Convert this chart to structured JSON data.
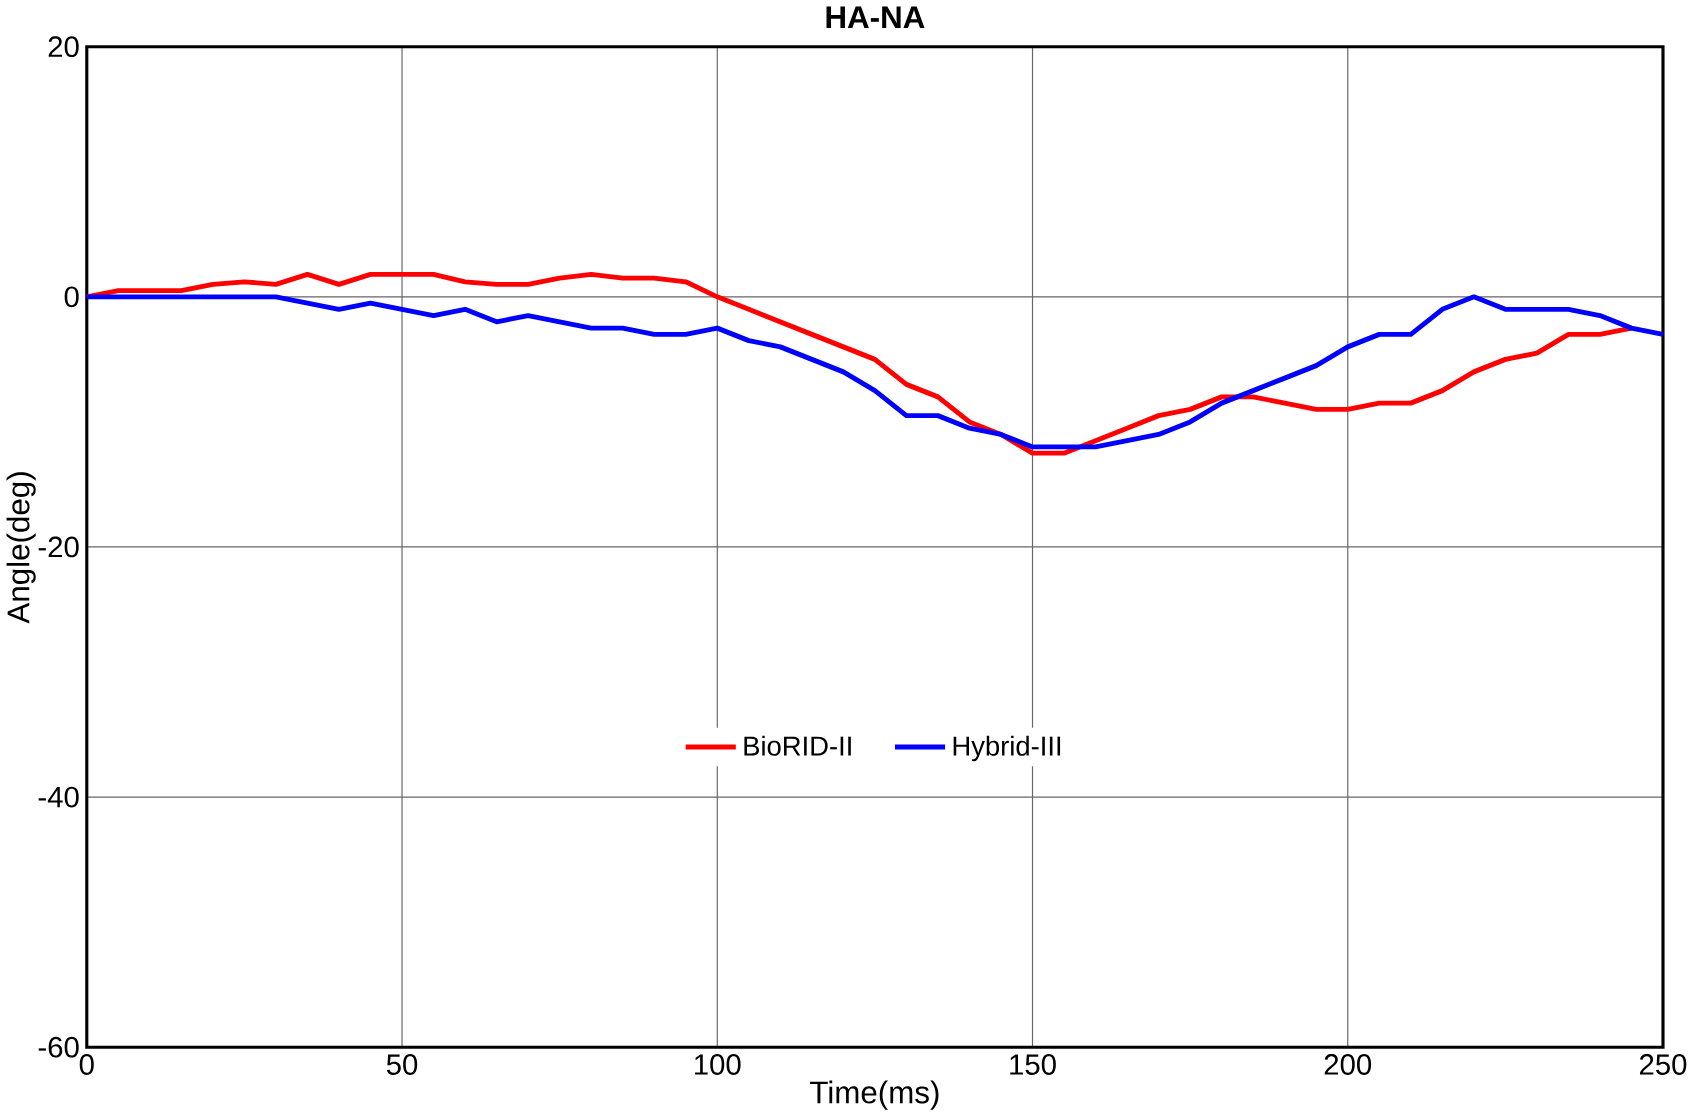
{
  "chart_data": {
    "type": "line",
    "title": "HA-NA",
    "xlabel": "Time(ms)",
    "ylabel": "Angle(deg)",
    "x": [
      0,
      5,
      10,
      15,
      20,
      25,
      30,
      35,
      40,
      45,
      50,
      55,
      60,
      65,
      70,
      75,
      80,
      85,
      90,
      95,
      100,
      105,
      110,
      115,
      120,
      125,
      130,
      135,
      140,
      145,
      150,
      155,
      160,
      165,
      170,
      175,
      180,
      185,
      190,
      195,
      200,
      205,
      210,
      215,
      220,
      225,
      230,
      235,
      240,
      245,
      250
    ],
    "series": [
      {
        "name": "BioRID-II",
        "color": "#ff0000",
        "values": [
          0,
          0.5,
          0.5,
          0.5,
          1,
          1.2,
          1,
          1.8,
          1,
          1.8,
          1.8,
          1.8,
          1.2,
          1,
          1,
          1.5,
          1.8,
          1.5,
          1.5,
          1.2,
          0,
          -1,
          -2,
          -3,
          -4,
          -5,
          -7,
          -8,
          -10,
          -11,
          -12.5,
          -12.5,
          -11.5,
          -10.5,
          -9.5,
          -9,
          -8,
          -8,
          -8.5,
          -9,
          -9,
          -8.5,
          -8.5,
          -7.5,
          -6,
          -5,
          -4.5,
          -3,
          -3,
          -2.5,
          null
        ]
      },
      {
        "name": "Hybrid-III",
        "color": "#0000ff",
        "values": [
          0,
          0,
          0,
          0,
          0,
          0,
          0,
          -0.5,
          -1,
          -0.5,
          -1,
          -1.5,
          -1,
          -2,
          -1.5,
          -2,
          -2.5,
          -2.5,
          -3,
          -3,
          -2.5,
          -3.5,
          -4,
          -5,
          -6,
          -7.5,
          -9.5,
          -9.5,
          -10.5,
          -11,
          -12,
          -12,
          -12,
          -11.5,
          -11,
          -10,
          -8.5,
          -7.5,
          -6.5,
          -5.5,
          -4,
          -3,
          -3,
          -1,
          0,
          -1,
          -1,
          -1,
          -1.5,
          -2.5,
          -3
        ]
      }
    ],
    "xlim": [
      0,
      250
    ],
    "xticks": [
      0,
      50,
      100,
      150,
      200,
      250
    ],
    "ylim": [
      -60,
      20
    ],
    "yticks": [
      -60,
      -40,
      -20,
      0,
      20
    ],
    "grid": true,
    "legend": "bottom",
    "marker": "none",
    "line_style": "solid"
  }
}
